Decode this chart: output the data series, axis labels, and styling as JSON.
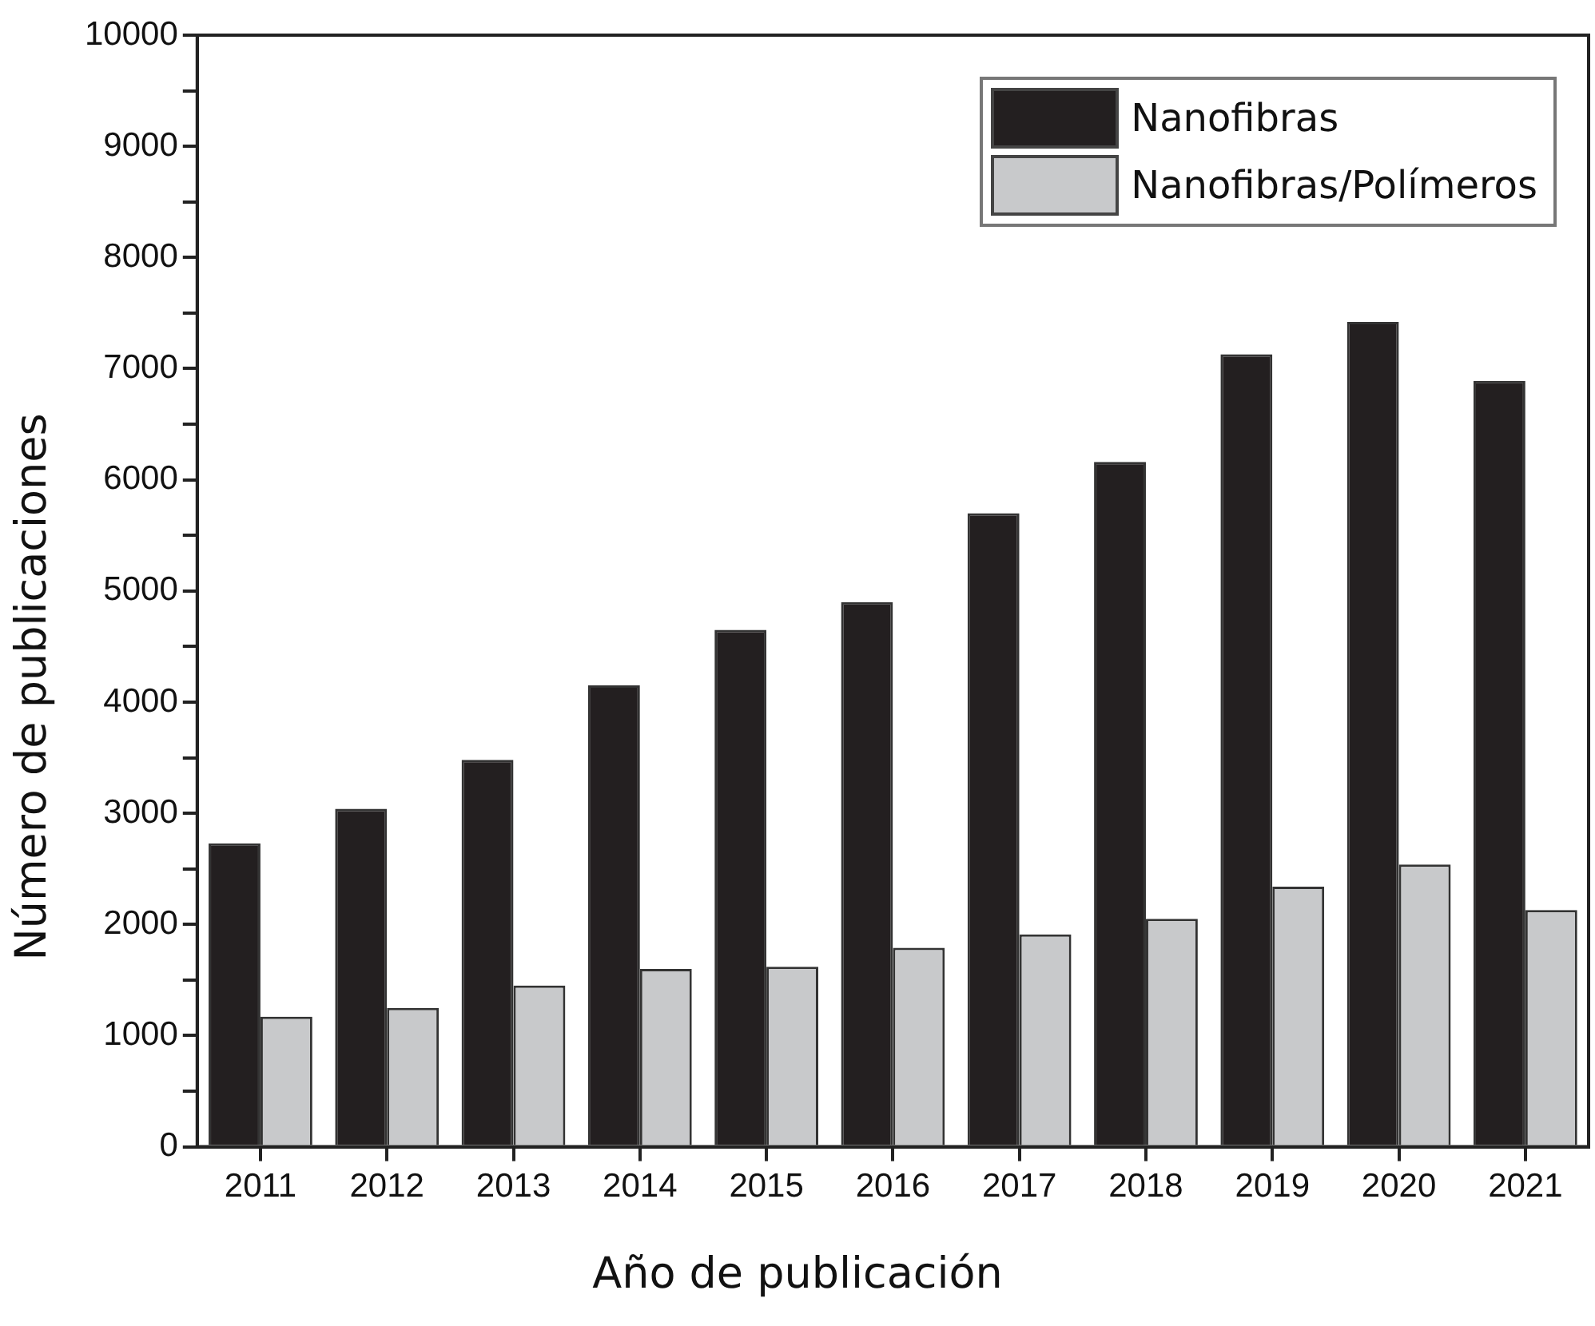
{
  "chart_data": {
    "type": "bar",
    "xlabel": "Año de publicación",
    "ylabel": "Número de publicaciones",
    "categories": [
      "2011",
      "2012",
      "2013",
      "2014",
      "2015",
      "2016",
      "2017",
      "2018",
      "2019",
      "2020",
      "2021"
    ],
    "series": [
      {
        "name": "Nanofibras",
        "color": "#231f20",
        "values": [
          2730,
          3040,
          3480,
          4150,
          4650,
          4900,
          5700,
          6160,
          7130,
          7420,
          6890
        ]
      },
      {
        "name": "Nanofibras/Polímeros",
        "color": "#c8c9cb",
        "values": [
          1170,
          1250,
          1450,
          1600,
          1620,
          1790,
          1910,
          2050,
          2340,
          2540,
          2130
        ]
      }
    ],
    "ylim": [
      0,
      10000
    ],
    "yticks": [
      0,
      {
        "value": 500,
        "label": null
      },
      1000,
      {
        "value": 1500,
        "label": null
      },
      2000,
      {
        "value": 2500,
        "label": null
      },
      3000,
      {
        "value": 3500,
        "label": null
      },
      4000,
      {
        "value": 4500,
        "label": null
      },
      5000,
      {
        "value": 5500,
        "label": null
      },
      6000,
      {
        "value": 6500,
        "label": null
      },
      7000,
      {
        "value": 7500,
        "label": null
      },
      8000,
      {
        "value": 8500,
        "label": null
      },
      9000,
      {
        "value": 9500,
        "label": null
      },
      10000
    ],
    "grid": false,
    "legend": "top right"
  }
}
